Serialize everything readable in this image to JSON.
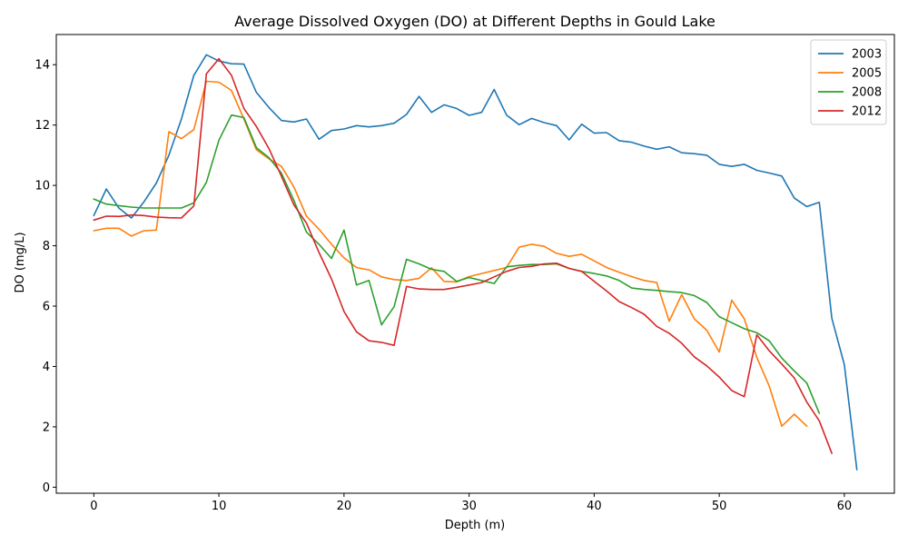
{
  "chart_data": {
    "type": "line",
    "title": "Average Dissolved Oxygen (DO) at Different Depths in Gould Lake",
    "xlabel": "Depth (m)",
    "ylabel": "DO (mg/L)",
    "xlim": [
      -3,
      64
    ],
    "ylim": [
      -0.2,
      15.0
    ],
    "xticks": [
      0,
      10,
      20,
      30,
      40,
      50,
      60
    ],
    "yticks": [
      0,
      2,
      4,
      6,
      8,
      10,
      12,
      14
    ],
    "grid": false,
    "legend_position": "top-right",
    "series": [
      {
        "name": "2003",
        "color": "#1f77b4",
        "x": [
          0,
          1,
          2,
          3,
          4,
          5,
          6,
          7,
          8,
          9,
          10,
          11,
          12,
          13,
          14,
          15,
          16,
          17,
          18,
          19,
          20,
          21,
          22,
          23,
          24,
          25,
          26,
          27,
          28,
          29,
          30,
          31,
          32,
          33,
          34,
          35,
          36,
          37,
          38,
          39,
          40,
          41,
          42,
          43,
          44,
          45,
          46,
          47,
          48,
          49,
          50,
          51,
          52,
          53,
          54,
          55,
          56,
          57,
          58,
          59,
          60,
          61
        ],
        "values": [
          9.0,
          9.88,
          9.25,
          8.92,
          9.45,
          10.08,
          11.0,
          12.2,
          13.65,
          14.33,
          14.12,
          14.03,
          14.02,
          13.08,
          12.58,
          12.15,
          12.1,
          12.2,
          11.53,
          11.82,
          11.87,
          11.98,
          11.94,
          11.98,
          12.06,
          12.35,
          12.95,
          12.42,
          12.67,
          12.55,
          12.32,
          12.42,
          13.18,
          12.33,
          12.01,
          12.22,
          12.08,
          11.98,
          11.51,
          12.03,
          11.73,
          11.75,
          11.48,
          11.43,
          11.3,
          11.2,
          11.28,
          11.08,
          11.05,
          11.0,
          10.7,
          10.63,
          10.7,
          10.5,
          10.41,
          10.31,
          9.58,
          9.3,
          9.44,
          5.6,
          4.06,
          0.58
        ]
      },
      {
        "name": "2005",
        "color": "#ff7f0e",
        "x": [
          0,
          1,
          2,
          3,
          4,
          5,
          6,
          7,
          8,
          9,
          10,
          11,
          12,
          13,
          14,
          15,
          16,
          17,
          18,
          19,
          20,
          21,
          22,
          23,
          24,
          25,
          26,
          27,
          28,
          29,
          30,
          31,
          32,
          33,
          34,
          35,
          36,
          37,
          38,
          39,
          40,
          41,
          42,
          43,
          44,
          45,
          46,
          47,
          48,
          49,
          50,
          51,
          52,
          53,
          54,
          55,
          56,
          57
        ],
        "values": [
          8.5,
          8.58,
          8.58,
          8.32,
          8.5,
          8.52,
          11.78,
          11.55,
          11.85,
          13.45,
          13.42,
          13.15,
          12.2,
          11.18,
          10.88,
          10.63,
          9.95,
          8.98,
          8.55,
          8.05,
          7.6,
          7.28,
          7.2,
          6.97,
          6.88,
          6.85,
          6.92,
          7.27,
          6.82,
          6.8,
          6.98,
          7.08,
          7.18,
          7.28,
          7.95,
          8.05,
          7.98,
          7.75,
          7.65,
          7.72,
          7.5,
          7.28,
          7.12,
          6.98,
          6.85,
          6.78,
          5.5,
          6.38,
          5.58,
          5.2,
          4.48,
          6.2,
          5.58,
          4.3,
          3.35,
          2.02,
          2.42,
          2.02
        ]
      },
      {
        "name": "2008",
        "color": "#2ca02c",
        "x": [
          0,
          1,
          2,
          3,
          4,
          5,
          6,
          7,
          8,
          9,
          10,
          11,
          12,
          13,
          14,
          15,
          16,
          17,
          18,
          19,
          20,
          21,
          22,
          23,
          24,
          25,
          26,
          27,
          28,
          29,
          30,
          31,
          32,
          33,
          34,
          35,
          36,
          37,
          38,
          39,
          40,
          41,
          42,
          43,
          44,
          45,
          46,
          47,
          48,
          49,
          50,
          51,
          52,
          53,
          54,
          55,
          56,
          57,
          58
        ],
        "values": [
          9.55,
          9.38,
          9.33,
          9.28,
          9.25,
          9.25,
          9.25,
          9.25,
          9.42,
          10.1,
          11.5,
          12.33,
          12.25,
          11.25,
          10.92,
          10.4,
          9.5,
          8.45,
          8.05,
          7.58,
          8.52,
          6.7,
          6.85,
          5.38,
          5.98,
          7.55,
          7.4,
          7.22,
          7.15,
          6.82,
          6.95,
          6.85,
          6.75,
          7.3,
          7.35,
          7.38,
          7.38,
          7.4,
          7.25,
          7.15,
          7.08,
          7.0,
          6.85,
          6.6,
          6.55,
          6.52,
          6.48,
          6.45,
          6.35,
          6.12,
          5.65,
          5.45,
          5.25,
          5.12,
          4.85,
          4.28,
          3.85,
          3.45,
          2.45
        ]
      },
      {
        "name": "2012",
        "color": "#d62728",
        "x": [
          0,
          1,
          2,
          3,
          4,
          5,
          6,
          7,
          8,
          9,
          10,
          11,
          12,
          13,
          14,
          15,
          16,
          17,
          18,
          19,
          20,
          21,
          22,
          23,
          24,
          25,
          26,
          27,
          28,
          29,
          30,
          31,
          32,
          33,
          34,
          35,
          36,
          37,
          38,
          39,
          40,
          41,
          42,
          43,
          44,
          45,
          46,
          47,
          48,
          49,
          50,
          51,
          52,
          53,
          54,
          55,
          56,
          57,
          58,
          59
        ],
        "values": [
          8.85,
          8.98,
          8.97,
          9.02,
          9.0,
          8.95,
          8.93,
          8.92,
          9.32,
          13.7,
          14.2,
          13.65,
          12.55,
          11.95,
          11.22,
          10.3,
          9.35,
          8.75,
          7.78,
          6.9,
          5.82,
          5.15,
          4.85,
          4.8,
          4.7,
          6.65,
          6.57,
          6.55,
          6.55,
          6.62,
          6.7,
          6.78,
          6.97,
          7.15,
          7.28,
          7.32,
          7.4,
          7.42,
          7.25,
          7.15,
          6.82,
          6.5,
          6.15,
          5.95,
          5.73,
          5.33,
          5.1,
          4.77,
          4.32,
          4.02,
          3.65,
          3.2,
          3.0,
          5.05,
          4.52,
          4.08,
          3.62,
          2.82,
          2.2,
          1.12
        ]
      }
    ]
  }
}
